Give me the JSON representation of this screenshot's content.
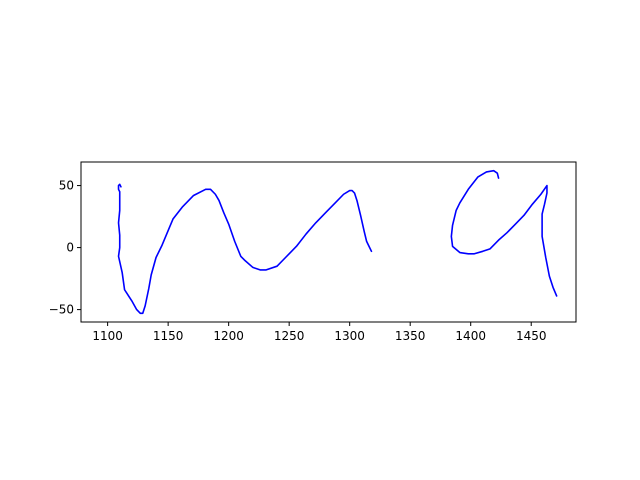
{
  "chart_data": {
    "type": "line",
    "title": "",
    "xlabel": "",
    "ylabel": "",
    "xlim": [
      1078,
      1487
    ],
    "ylim": [
      -60,
      69
    ],
    "grid": false,
    "xticks": [
      1100,
      1150,
      1200,
      1250,
      1300,
      1350,
      1400,
      1450
    ],
    "yticks": [
      -50,
      0,
      50
    ],
    "series": [
      {
        "color": "#0000ff",
        "segments": [
          [
            [
              1111,
              49
            ],
            [
              1110,
              51
            ],
            [
              1109,
              50
            ],
            [
              1109,
              47
            ],
            [
              1110,
              45
            ],
            [
              1110,
              30
            ],
            [
              1109,
              20
            ],
            [
              1110,
              10
            ],
            [
              1110,
              0
            ],
            [
              1109,
              -7
            ],
            [
              1112,
              -20
            ],
            [
              1114,
              -34
            ],
            [
              1120,
              -43
            ],
            [
              1124,
              -50
            ],
            [
              1127,
              -53
            ],
            [
              1129,
              -53
            ],
            [
              1131,
              -47
            ],
            [
              1134,
              -33
            ],
            [
              1136,
              -22
            ],
            [
              1140,
              -8
            ],
            [
              1145,
              2
            ],
            [
              1151,
              16
            ],
            [
              1154,
              23
            ],
            [
              1162,
              33
            ],
            [
              1171,
              42
            ],
            [
              1181,
              47
            ],
            [
              1185,
              47
            ],
            [
              1189,
              43
            ],
            [
              1192,
              38
            ],
            [
              1196,
              28
            ],
            [
              1200,
              19
            ],
            [
              1205,
              5
            ],
            [
              1210,
              -7
            ],
            [
              1213,
              -10
            ],
            [
              1220,
              -16
            ],
            [
              1226,
              -18
            ],
            [
              1231,
              -18
            ],
            [
              1240,
              -15
            ],
            [
              1247,
              -8
            ],
            [
              1256,
              1
            ],
            [
              1264,
              11
            ],
            [
              1272,
              20
            ],
            [
              1281,
              29
            ],
            [
              1288,
              36
            ],
            [
              1295,
              43
            ],
            [
              1300,
              46
            ],
            [
              1302,
              46
            ],
            [
              1304,
              44
            ],
            [
              1306,
              38
            ],
            [
              1309,
              26
            ],
            [
              1312,
              13
            ],
            [
              1314,
              5
            ],
            [
              1316,
              1
            ],
            [
              1318,
              -3
            ]
          ],
          [
            [
              1423,
              56
            ],
            [
              1422,
              60
            ],
            [
              1419,
              62
            ],
            [
              1413,
              61
            ],
            [
              1406,
              57
            ],
            [
              1398,
              47
            ],
            [
              1391,
              36
            ],
            [
              1388,
              30
            ],
            [
              1385,
              18
            ],
            [
              1384,
              9
            ],
            [
              1385,
              1
            ],
            [
              1391,
              -4
            ],
            [
              1398,
              -5
            ],
            [
              1403,
              -5
            ],
            [
              1410,
              -3
            ],
            [
              1416,
              -1
            ],
            [
              1423,
              6
            ],
            [
              1430,
              12
            ],
            [
              1437,
              19
            ],
            [
              1444,
              26
            ],
            [
              1451,
              35
            ],
            [
              1458,
              43
            ],
            [
              1463,
              50
            ],
            [
              1463,
              44
            ],
            [
              1461,
              35
            ],
            [
              1459,
              27
            ],
            [
              1459,
              19
            ],
            [
              1459,
              9
            ],
            [
              1462,
              -8
            ],
            [
              1465,
              -23
            ],
            [
              1468,
              -32
            ],
            [
              1471,
              -39
            ]
          ]
        ]
      }
    ]
  }
}
